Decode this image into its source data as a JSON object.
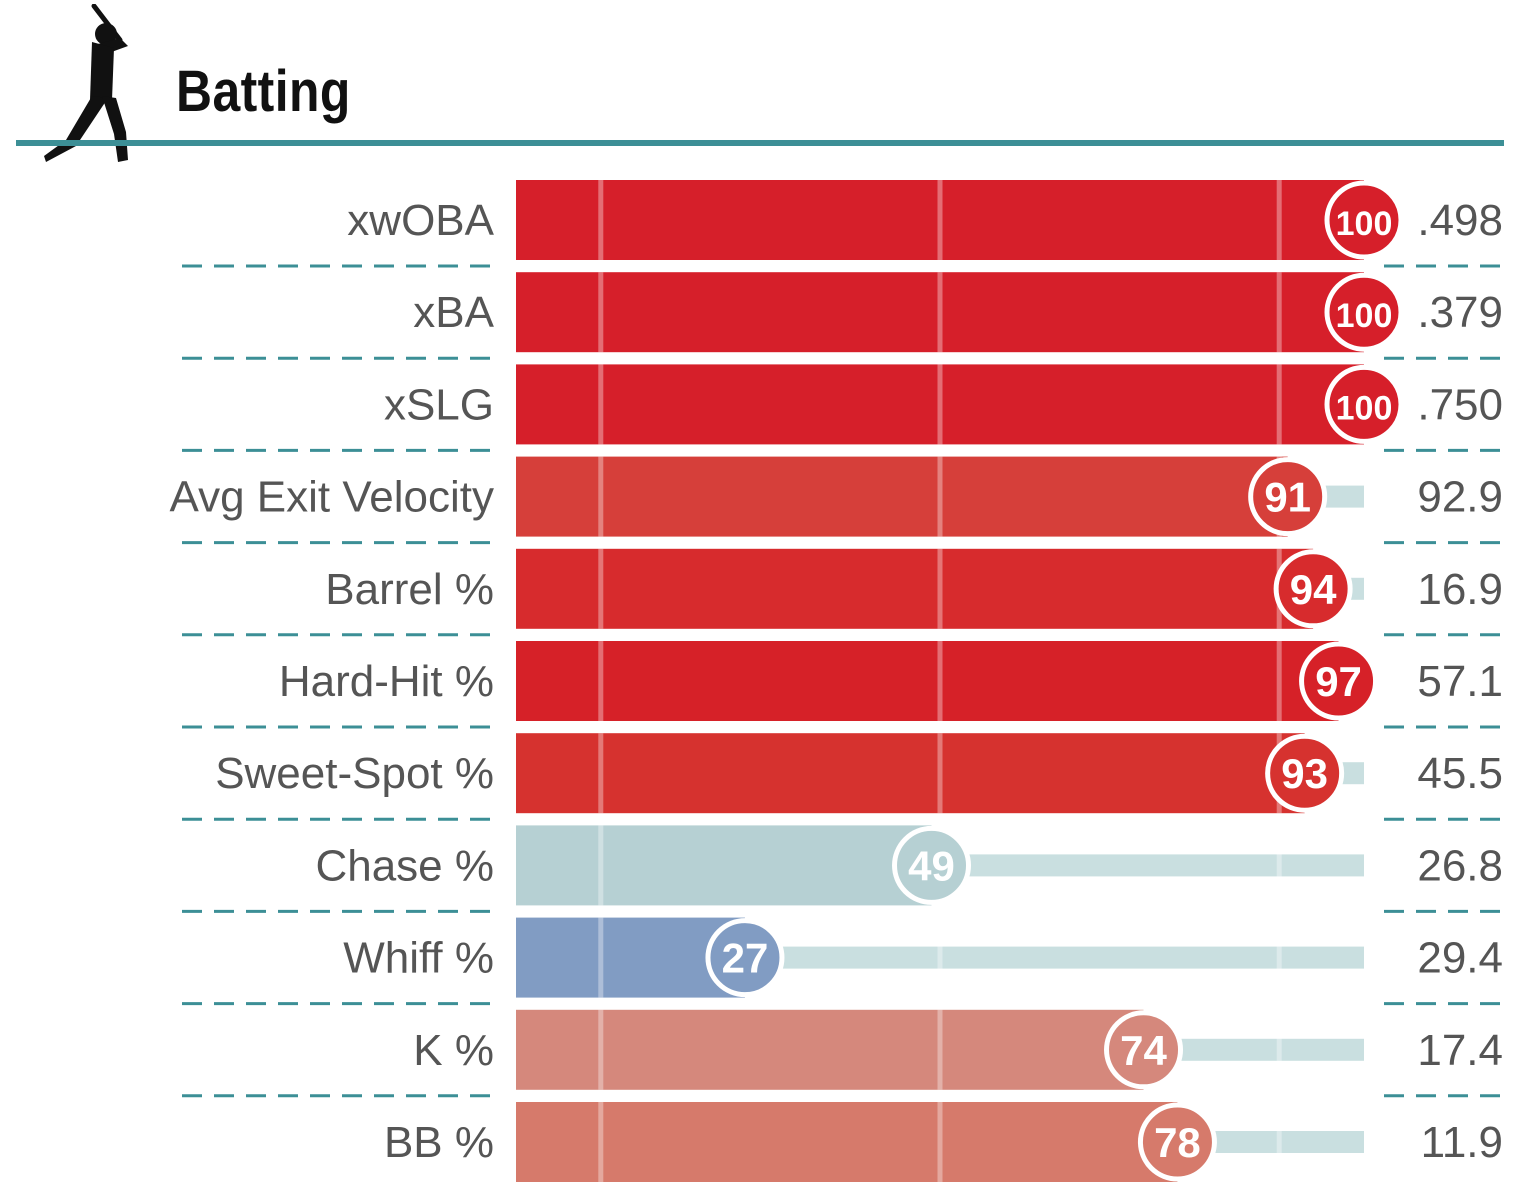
{
  "header": {
    "title": "Batting",
    "icon": "batter-silhouette-icon",
    "rule_color": "#3c8f96"
  },
  "chart_data": {
    "type": "bar",
    "orientation": "horizontal",
    "xlim": [
      0,
      100
    ],
    "reference_lines_at": [
      10,
      50,
      90
    ],
    "grid": false,
    "categories": [
      "xwOBA",
      "xBA",
      "xSLG",
      "Avg Exit Velocity",
      "Barrel %",
      "Hard-Hit %",
      "Sweet-Spot %",
      "Chase %",
      "Whiff %",
      "K %",
      "BB %"
    ],
    "percentiles": [
      100,
      100,
      100,
      91,
      94,
      97,
      93,
      49,
      27,
      74,
      78
    ],
    "values": [
      ".498",
      ".379",
      ".750",
      "92.9",
      "16.9",
      "57.1",
      "45.5",
      "26.8",
      "29.4",
      "17.4",
      "11.9"
    ],
    "bar_colors": [
      "#d61f2a",
      "#d61f2a",
      "#d61f2a",
      "#d63f3a",
      "#d72b2d",
      "#d62128",
      "#d6322f",
      "#b6d0d3",
      "#819cc3",
      "#d5887c",
      "#d67a6b"
    ],
    "track_color": "#c9dfe0",
    "divider_color": "#3c8f96"
  }
}
